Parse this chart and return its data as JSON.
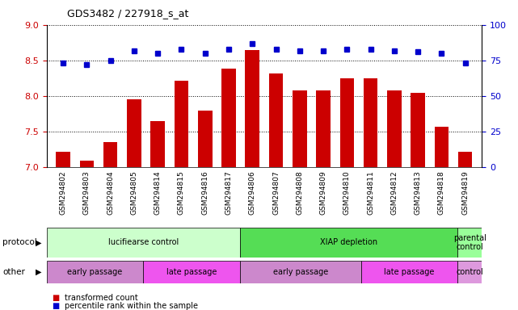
{
  "title": "GDS3482 / 227918_s_at",
  "samples": [
    "GSM294802",
    "GSM294803",
    "GSM294804",
    "GSM294805",
    "GSM294814",
    "GSM294815",
    "GSM294816",
    "GSM294817",
    "GSM294806",
    "GSM294807",
    "GSM294808",
    "GSM294809",
    "GSM294810",
    "GSM294811",
    "GSM294812",
    "GSM294813",
    "GSM294818",
    "GSM294819"
  ],
  "transformed_count": [
    7.22,
    7.1,
    7.35,
    7.95,
    7.65,
    8.22,
    7.8,
    8.38,
    8.65,
    8.32,
    8.08,
    8.08,
    8.25,
    8.25,
    8.08,
    8.05,
    7.57,
    7.22
  ],
  "percentile_rank": [
    73,
    72,
    75,
    82,
    80,
    83,
    80,
    83,
    87,
    83,
    82,
    82,
    83,
    83,
    82,
    81,
    80,
    73
  ],
  "ylim_left": [
    7.0,
    9.0
  ],
  "ylim_right": [
    0,
    100
  ],
  "yticks_left": [
    7.0,
    7.5,
    8.0,
    8.5,
    9.0
  ],
  "yticks_right": [
    0,
    25,
    50,
    75,
    100
  ],
  "bar_color": "#cc0000",
  "dot_color": "#0000cc",
  "protocol_groups": [
    {
      "label": "lucifiearse control",
      "start": 0,
      "end": 8,
      "color": "#ccffcc"
    },
    {
      "label": "XIAP depletion",
      "start": 8,
      "end": 17,
      "color": "#55dd55"
    },
    {
      "label": "parental\ncontrol",
      "start": 17,
      "end": 18,
      "color": "#99ff99"
    }
  ],
  "other_groups": [
    {
      "label": "early passage",
      "start": 0,
      "end": 4,
      "color": "#cc88cc"
    },
    {
      "label": "late passage",
      "start": 4,
      "end": 8,
      "color": "#ee55ee"
    },
    {
      "label": "early passage",
      "start": 8,
      "end": 13,
      "color": "#cc88cc"
    },
    {
      "label": "late passage",
      "start": 13,
      "end": 17,
      "color": "#ee55ee"
    },
    {
      "label": "control",
      "start": 17,
      "end": 18,
      "color": "#dd99dd"
    }
  ],
  "protocol_label_text": "protocol",
  "other_label_text": "other",
  "legend_items": [
    {
      "label": "transformed count",
      "color": "#cc0000"
    },
    {
      "label": "percentile rank within the sample",
      "color": "#0000cc"
    }
  ],
  "background_color": "#ffffff",
  "tick_color_left": "#cc0000",
  "tick_color_right": "#0000cc",
  "xticklabel_bg": "#d8d8d8",
  "plot_bg": "#ffffff",
  "lucifiearse_label": "lucifiearse control",
  "xiap_label": "XIAP depletion",
  "parental_label": "parental\ncontrol"
}
